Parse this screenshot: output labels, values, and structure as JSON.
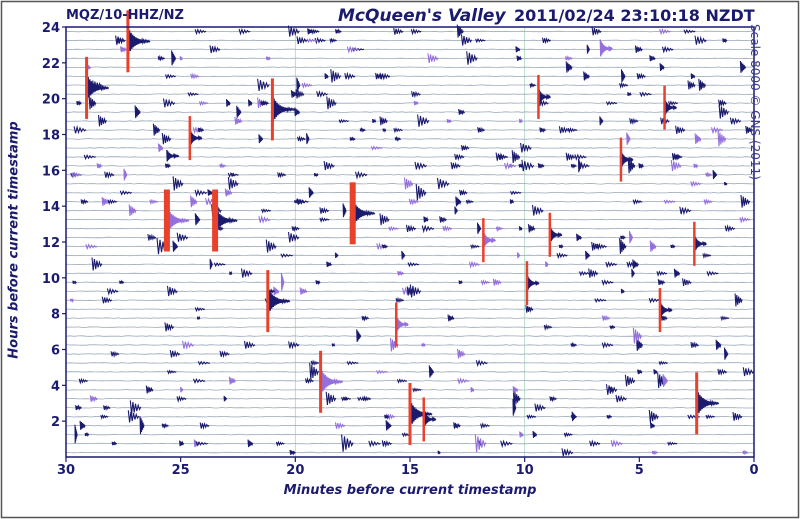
{
  "header": {
    "station": "MQZ/10-HHZ/NZ",
    "site": "McQueen's Valley",
    "timestamp": "2011/02/24 23:10:18 NZDT"
  },
  "credit": "Scale 8000 © GNS (2011)",
  "chart_data": {
    "type": "heatmap",
    "xlabel": "Minutes before current timestamp",
    "ylabel": "Hours before current timestamp",
    "x_ticks": [
      30,
      25,
      20,
      15,
      10,
      5,
      0
    ],
    "y_ticks": [
      2,
      4,
      6,
      8,
      10,
      12,
      14,
      16,
      18,
      20,
      22,
      24
    ],
    "xlim": [
      30,
      0
    ],
    "ylim": [
      0,
      24
    ],
    "trace_interval_minutes": 30,
    "trace_count": 48,
    "colors": {
      "trace_a": "#1a1a6e",
      "trace_b": "#9370db",
      "clipped": "#e8412c",
      "grid": "#9aa9b8",
      "minute_mark": "#a8d8c0"
    },
    "events": [
      {
        "t": 27.3,
        "h": 23.2,
        "amp": "large",
        "clipped": true
      },
      {
        "t": 29.1,
        "h": 20.6,
        "amp": "large",
        "clipped": true
      },
      {
        "t": 21.0,
        "h": 19.4,
        "amp": "large",
        "clipped": true
      },
      {
        "t": 25.6,
        "h": 13.2,
        "amp": "large",
        "clipped": true
      },
      {
        "t": 23.5,
        "h": 13.2,
        "amp": "large",
        "clipped": true
      },
      {
        "t": 17.5,
        "h": 13.6,
        "amp": "large",
        "clipped": true
      },
      {
        "t": 21.2,
        "h": 8.7,
        "amp": "large",
        "clipped": true
      },
      {
        "t": 18.9,
        "h": 4.2,
        "amp": "large",
        "clipped": true
      },
      {
        "t": 15.0,
        "h": 2.4,
        "amp": "large",
        "clipped": true
      },
      {
        "t": 2.5,
        "h": 3.0,
        "amp": "large",
        "clipped": true
      },
      {
        "t": 9.4,
        "h": 20.1,
        "amp": "medium",
        "clipped": true
      },
      {
        "t": 6.7,
        "h": 22.8,
        "amp": "medium",
        "clipped": false
      },
      {
        "t": 4.1,
        "h": 8.2,
        "amp": "medium",
        "clipped": true
      },
      {
        "t": 2.6,
        "h": 11.9,
        "amp": "medium",
        "clipped": true
      },
      {
        "t": 9.9,
        "h": 9.7,
        "amp": "medium",
        "clipped": true
      },
      {
        "t": 11.8,
        "h": 12.1,
        "amp": "medium",
        "clipped": true
      },
      {
        "t": 8.9,
        "h": 12.4,
        "amp": "medium",
        "clipped": true
      },
      {
        "t": 5.8,
        "h": 16.6,
        "amp": "medium",
        "clipped": true
      },
      {
        "t": 3.9,
        "h": 19.5,
        "amp": "medium",
        "clipped": true
      },
      {
        "t": 15.6,
        "h": 7.4,
        "amp": "medium",
        "clipped": true
      },
      {
        "t": 14.4,
        "h": 2.1,
        "amp": "medium",
        "clipped": true
      },
      {
        "t": 25.6,
        "h": 16.8,
        "amp": "small",
        "clipped": false
      },
      {
        "t": 24.6,
        "h": 17.8,
        "amp": "medium",
        "clipped": true
      }
    ]
  }
}
